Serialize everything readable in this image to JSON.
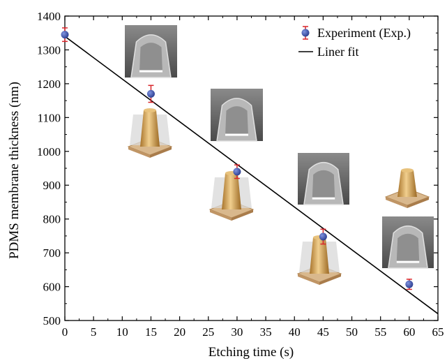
{
  "chart_data": {
    "type": "scatter",
    "title": "",
    "xlabel": "Etching time (s)",
    "ylabel": "PDMS membrane thickness (nm)",
    "xlim": [
      0,
      65
    ],
    "ylim": [
      500,
      1400
    ],
    "xticks": [
      0,
      5,
      10,
      15,
      20,
      25,
      30,
      35,
      40,
      45,
      50,
      55,
      60,
      65
    ],
    "yticks": [
      500,
      600,
      700,
      800,
      900,
      1000,
      1100,
      1200,
      1300,
      1400
    ],
    "grid": false,
    "legend_position": "top-right",
    "series": [
      {
        "name": "Experiment (Exp.)",
        "kind": "points-with-error-bars",
        "color": "#3a4fa8",
        "error_color": "#d8262b",
        "x": [
          0,
          15,
          30,
          45,
          60
        ],
        "y": [
          1345,
          1170,
          940,
          748,
          607
        ],
        "error": [
          20,
          25,
          20,
          22,
          15
        ]
      },
      {
        "name": "Liner fit",
        "kind": "line",
        "color": "#000000",
        "x": [
          0,
          65
        ],
        "y": [
          1340,
          520
        ]
      }
    ],
    "insets": [
      {
        "kind": "sem-micrograph",
        "near_x": 15
      },
      {
        "kind": "sem-micrograph",
        "near_x": 30
      },
      {
        "kind": "sem-micrograph",
        "near_x": 45
      },
      {
        "kind": "sem-micrograph",
        "near_x": 60
      },
      {
        "kind": "pillar-illustration",
        "near_x": 15
      },
      {
        "kind": "pillar-illustration",
        "near_x": 30
      },
      {
        "kind": "pillar-illustration",
        "near_x": 45
      },
      {
        "kind": "pillar-illustration",
        "near_x": 60
      }
    ]
  }
}
